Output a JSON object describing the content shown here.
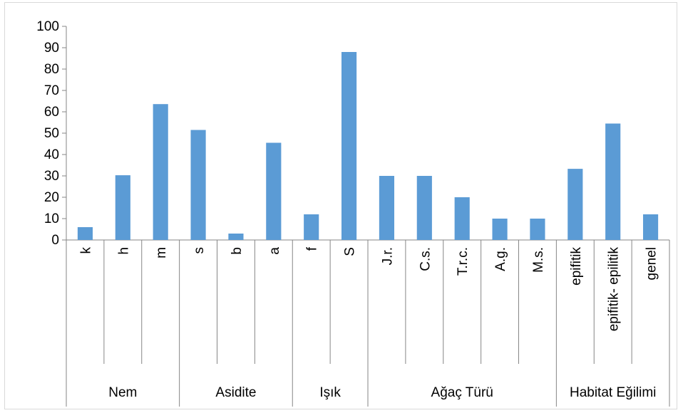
{
  "chart_data": {
    "type": "bar",
    "title": "",
    "xlabel": "",
    "ylabel": "",
    "ylim": [
      0,
      100
    ],
    "yticks": [
      0,
      10,
      20,
      30,
      40,
      50,
      60,
      70,
      80,
      90,
      100
    ],
    "grid": false,
    "legend": "none",
    "bar_color": "#5b9bd5",
    "groups": [
      {
        "name": "Nem",
        "categories": [
          "k",
          "h",
          "m"
        ]
      },
      {
        "name": "Asidite",
        "categories": [
          "s",
          "b",
          "a"
        ]
      },
      {
        "name": "Işık",
        "categories": [
          "f",
          "S"
        ]
      },
      {
        "name": "Ağaç Türü",
        "categories": [
          "J.r.",
          "C.s.",
          "T.r.c.",
          "A.g.",
          "M.s."
        ]
      },
      {
        "name": "Habitat Eğilimi",
        "categories": [
          "epifitik",
          "epifitik- epilitik",
          "genel"
        ]
      }
    ],
    "categories": [
      "k",
      "h",
      "m",
      "s",
      "b",
      "a",
      "f",
      "S",
      "J.r.",
      "C.s.",
      "T.r.c.",
      "A.g.",
      "M.s.",
      "epifitik",
      "epifitik- epilitik",
      "genel"
    ],
    "values": [
      6,
      30.3,
      63.6,
      51.5,
      3,
      45.5,
      12,
      88,
      30,
      30,
      20,
      10,
      10,
      33.3,
      54.5,
      12
    ]
  }
}
